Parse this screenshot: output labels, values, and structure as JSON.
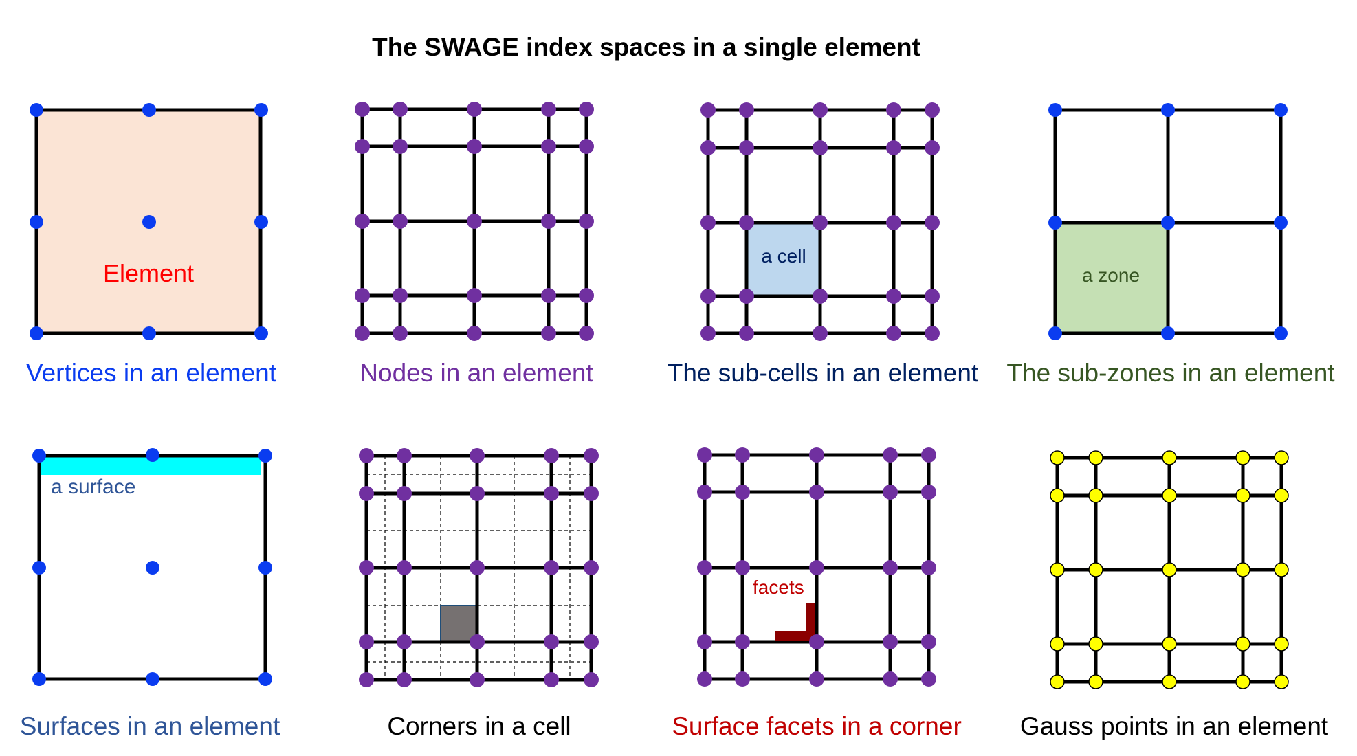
{
  "title": "The SWAGE index spaces in a single element",
  "colors": {
    "line": "#000000",
    "vertex": "#0a3cf0",
    "node": "#7030a0",
    "gauss_fill": "#ffff00",
    "element_fill": "#fbe4d5",
    "cell_fill": "#bdd7ee",
    "zone_fill": "#c5e0b4",
    "surface_fill": "#00ffff",
    "corner_fill": "#767171",
    "facet_fill": "#8b0000"
  },
  "panels": [
    {
      "id": "vertices",
      "caption": "Vertices in an element",
      "caption_color": "#0a3cf0",
      "inner_label": "Element",
      "inner_color": "#ff0000"
    },
    {
      "id": "nodes",
      "caption": "Nodes in an element",
      "caption_color": "#7030a0"
    },
    {
      "id": "subcells",
      "caption": "The sub-cells in an element",
      "caption_color": "#002060",
      "inner_label": "a cell",
      "inner_color": "#002060"
    },
    {
      "id": "subzones",
      "caption": "The sub-zones in an element",
      "caption_color": "#375623",
      "inner_label": "a zone",
      "inner_color": "#375623"
    },
    {
      "id": "surfaces",
      "caption": "Surfaces in an element",
      "caption_color": "#2f5597",
      "inner_label": "a surface",
      "inner_color": "#2f5597"
    },
    {
      "id": "corners",
      "caption": "Corners in a cell",
      "caption_color": "#000000"
    },
    {
      "id": "facets",
      "caption": "Surface facets in a corner",
      "caption_color": "#c00000",
      "inner_label": "facets",
      "inner_color": "#c00000"
    },
    {
      "id": "gauss",
      "caption": "Gauss points in an element",
      "caption_color": "#000000"
    }
  ]
}
